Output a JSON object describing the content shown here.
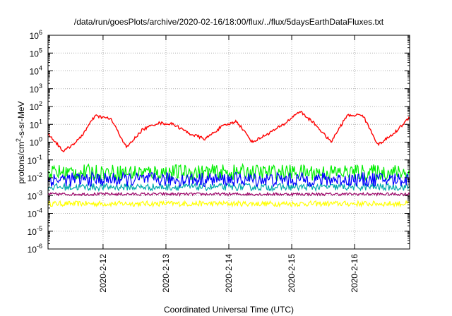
{
  "chart_data": {
    "type": "line",
    "title": "/data/run/goesPlots/archive/2020-02-16/18:00/flux/../flux/5daysEarthDataFluxes.txt",
    "xlabel": "Coordinated Universal Time (UTC)",
    "ylabel": "protons/cm2-s-sr-MeV",
    "y_scale": "log",
    "ylim": [
      1e-06,
      1000000.0
    ],
    "xlim": [
      "2020-02-11 03:00",
      "2020-02-16 21:00"
    ],
    "y_ticks": [
      {
        "base": "10",
        "exp": "-6"
      },
      {
        "base": "10",
        "exp": "-5"
      },
      {
        "base": "10",
        "exp": "-4"
      },
      {
        "base": "10",
        "exp": "-3"
      },
      {
        "base": "10",
        "exp": "-2"
      },
      {
        "base": "10",
        "exp": "-1"
      },
      {
        "base": "10",
        "exp": "0"
      },
      {
        "base": "10",
        "exp": "1"
      },
      {
        "base": "10",
        "exp": "2"
      },
      {
        "base": "10",
        "exp": "3"
      },
      {
        "base": "10",
        "exp": "4"
      },
      {
        "base": "10",
        "exp": "5"
      },
      {
        "base": "10",
        "exp": "6"
      }
    ],
    "x_ticks": [
      "2020-2-12",
      "2020-2-13",
      "2020-2-14",
      "2020-2-15",
      "2020-2-16"
    ],
    "grid": true,
    "legend": "none",
    "series": [
      {
        "color": "#ff0000",
        "x": [
          "2020-02-11 03:00",
          "2020-02-11 09:00",
          "2020-02-11 15:00",
          "2020-02-11 21:00",
          "2020-02-12 03:00",
          "2020-02-12 09:00",
          "2020-02-12 15:00",
          "2020-02-12 21:00",
          "2020-02-13 03:00",
          "2020-02-13 09:00",
          "2020-02-13 15:00",
          "2020-02-13 21:00",
          "2020-02-14 03:00",
          "2020-02-14 09:00",
          "2020-02-14 15:00",
          "2020-02-14 21:00",
          "2020-02-15 03:00",
          "2020-02-15 09:00",
          "2020-02-15 15:00",
          "2020-02-15 21:00",
          "2020-02-16 03:00",
          "2020-02-16 09:00",
          "2020-02-16 15:00",
          "2020-02-16 21:00"
        ],
        "y": [
          3,
          0.3,
          1.5,
          30,
          20,
          0.5,
          5,
          12,
          10,
          3,
          1.5,
          7,
          15,
          1,
          3,
          10,
          55,
          10,
          1,
          30,
          35,
          0.7,
          3,
          25
        ]
      },
      {
        "color": "#00ee00",
        "x": [
          "2020-02-11 03:00",
          "2020-02-16 21:00"
        ],
        "y": [
          0.02,
          0.02
        ]
      },
      {
        "color": "#0000ff",
        "x": [
          "2020-02-11 03:00",
          "2020-02-16 21:00"
        ],
        "y": [
          0.008,
          0.008
        ]
      },
      {
        "color": "#00aaaa",
        "x": [
          "2020-02-11 03:00",
          "2020-02-16 21:00"
        ],
        "y": [
          0.003,
          0.003
        ]
      },
      {
        "color": "#990066",
        "x": [
          "2020-02-11 03:00",
          "2020-02-16 21:00"
        ],
        "y": [
          0.0012,
          0.0012
        ]
      },
      {
        "color": "#ffff00",
        "x": [
          "2020-02-11 03:00",
          "2020-02-16 21:00"
        ],
        "y": [
          0.00035,
          0.00035
        ]
      }
    ]
  }
}
